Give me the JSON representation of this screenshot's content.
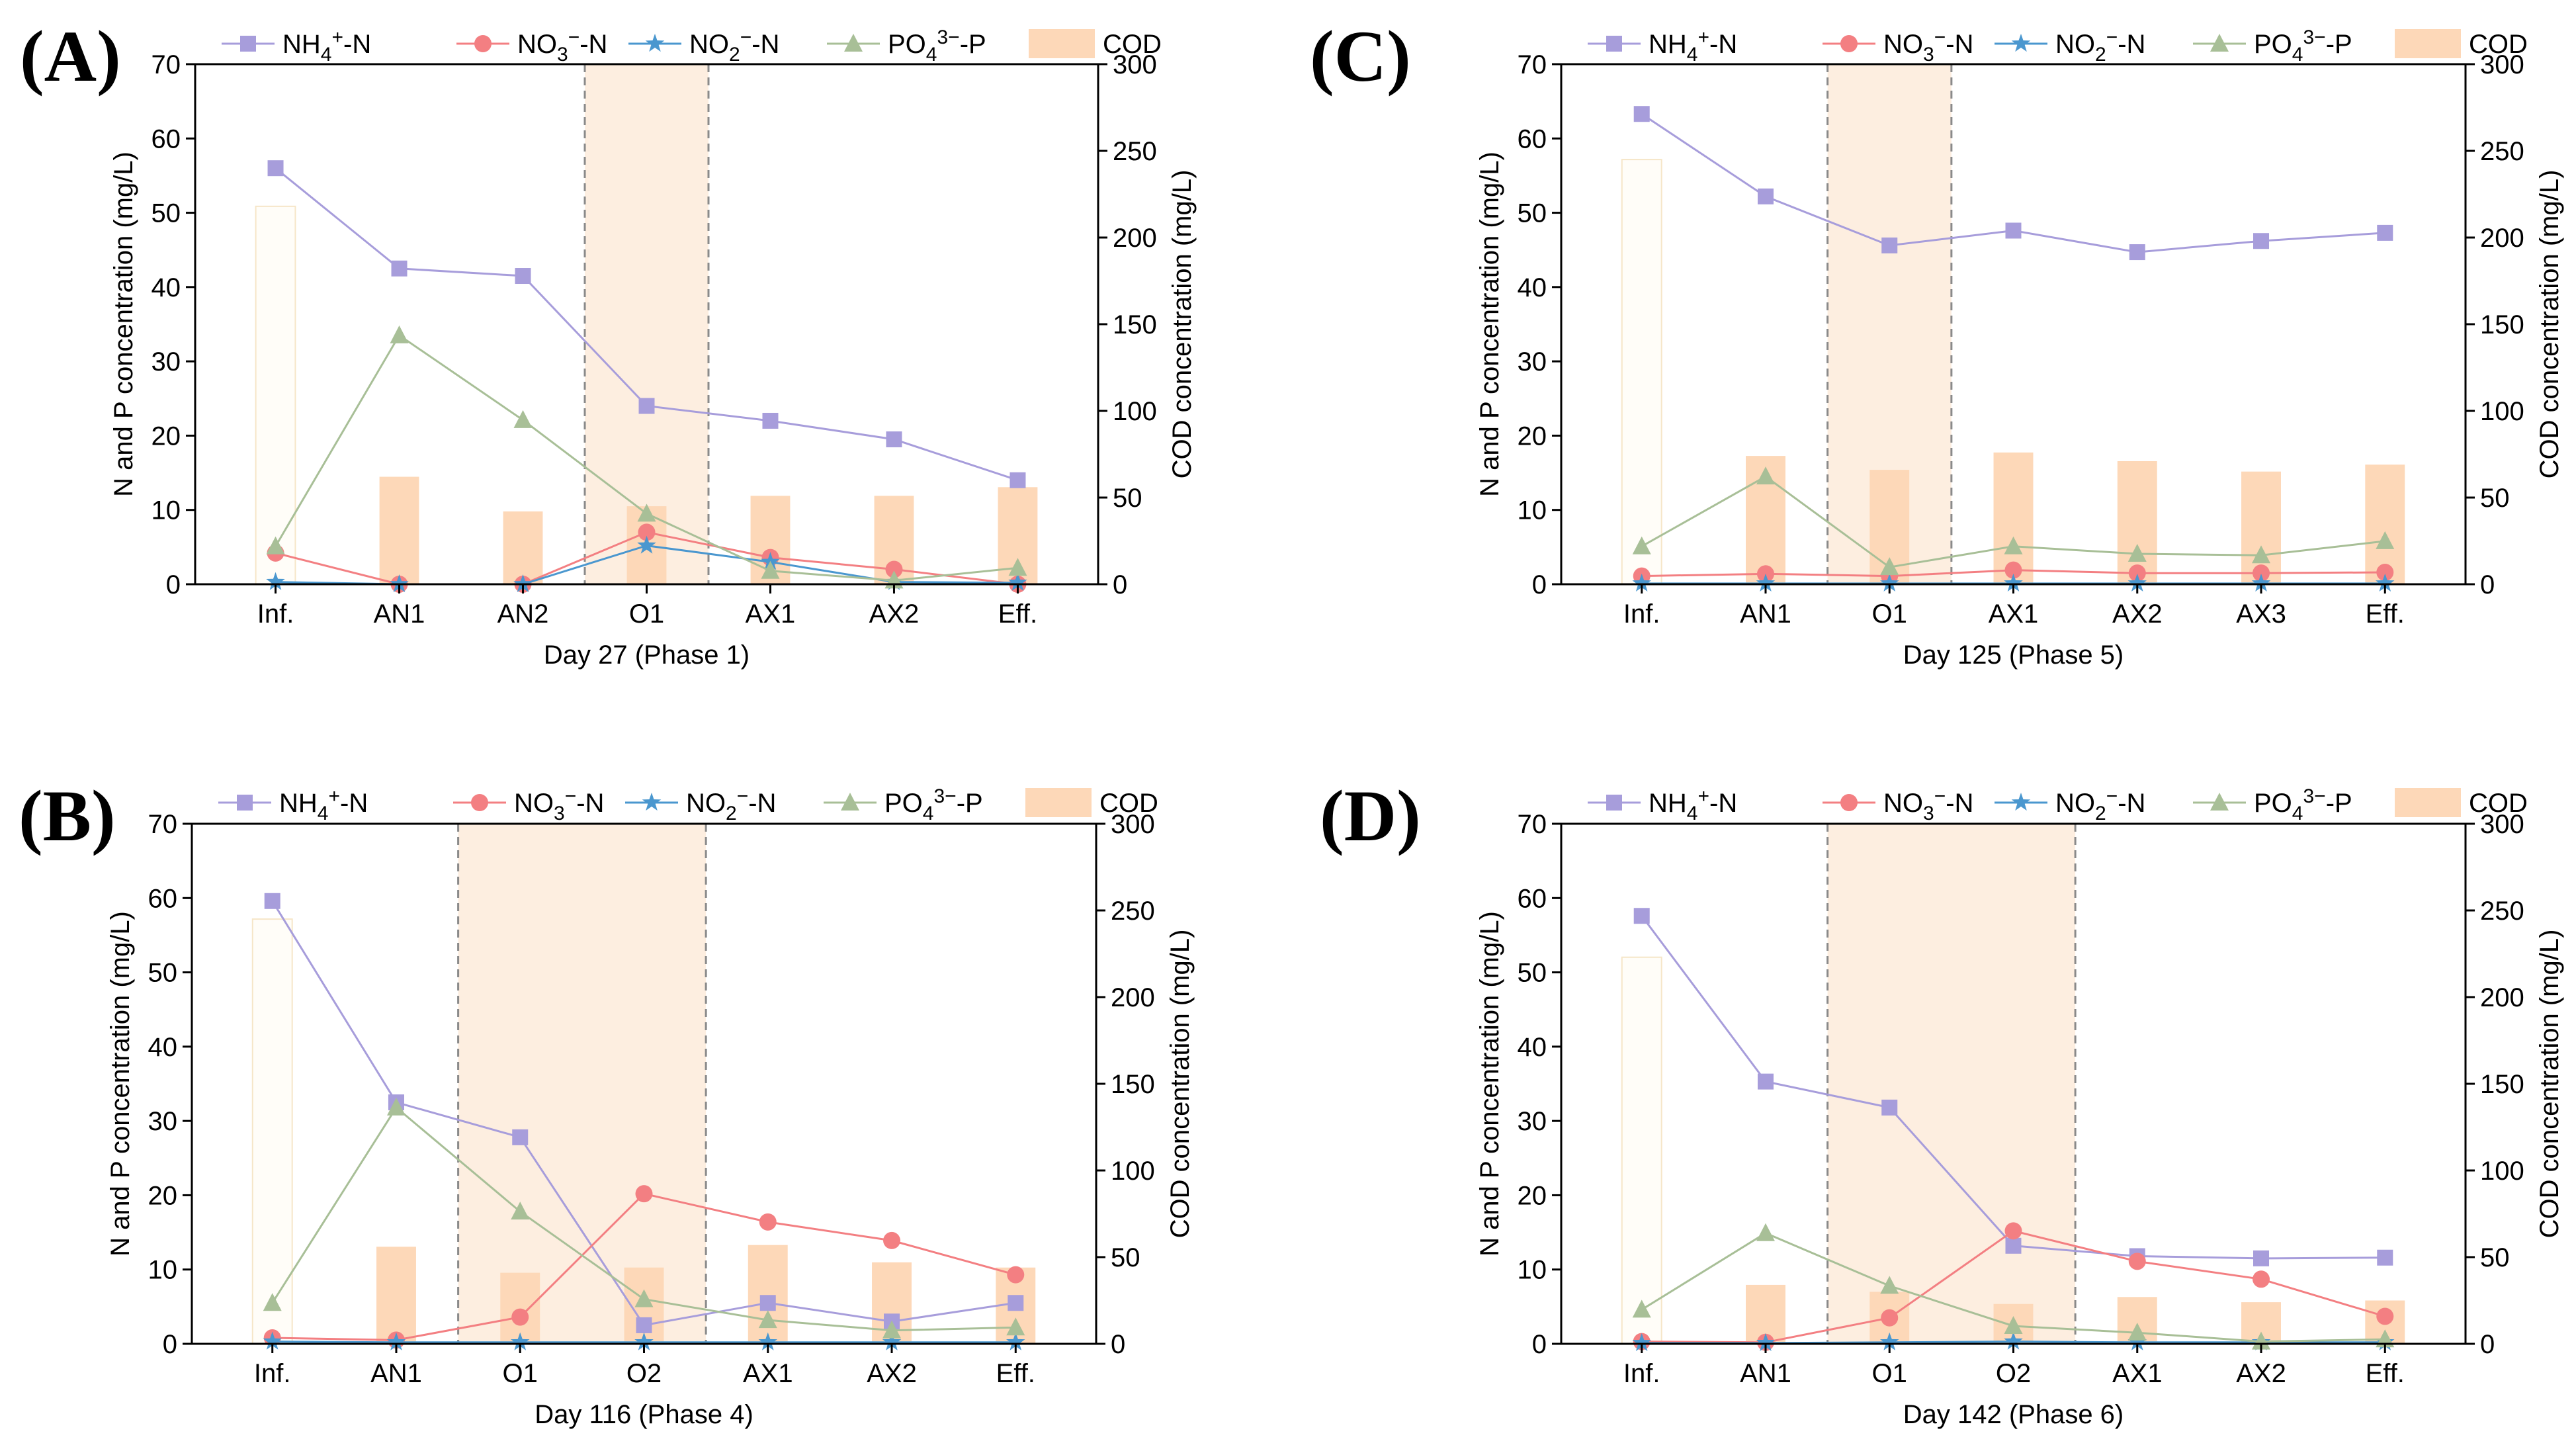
{
  "chart_data": [
    {
      "panel": "(A)",
      "type": "bar+line",
      "xlabel": "Day 27 (Phase 1)",
      "ylabel": "N and P concentration (mg/L)",
      "y2label": "COD concentration (mg/L)",
      "ylim": [
        0,
        70
      ],
      "y2lim": [
        0,
        300
      ],
      "yticks": [
        0,
        10,
        20,
        30,
        40,
        50,
        60,
        70
      ],
      "y2ticks": [
        0,
        50,
        100,
        150,
        200,
        250,
        300
      ],
      "categories": [
        "Inf.",
        "AN1",
        "AN2",
        "O1",
        "AX1",
        "AX2",
        "Eff."
      ],
      "shaded_region": [
        "O1",
        "O1"
      ],
      "cod_values": [
        218,
        62,
        42,
        45,
        51,
        51,
        56
      ],
      "series": [
        {
          "name": "NH4+-N",
          "values": [
            56,
            42.5,
            41.5,
            24,
            22,
            19.5,
            14
          ]
        },
        {
          "name": "NO3−-N",
          "values": [
            4.2,
            0,
            0,
            7,
            3.6,
            2,
            0
          ]
        },
        {
          "name": "NO2−-N",
          "values": [
            0.3,
            0,
            0,
            5.2,
            3,
            0.3,
            0.2
          ]
        },
        {
          "name": "PO43−-P",
          "values": [
            5.1,
            33.5,
            22.1,
            9.5,
            1.8,
            0.5,
            2.2
          ]
        }
      ]
    },
    {
      "panel": "(B)",
      "type": "bar+line",
      "xlabel": "Day 116 (Phase 4)",
      "ylabel": "N and P concentration (mg/L)",
      "y2label": "COD concentration (mg/L)",
      "ylim": [
        0,
        70
      ],
      "y2lim": [
        0,
        300
      ],
      "yticks": [
        0,
        10,
        20,
        30,
        40,
        50,
        60,
        70
      ],
      "y2ticks": [
        0,
        50,
        100,
        150,
        200,
        250,
        300
      ],
      "categories": [
        "Inf.",
        "AN1",
        "O1",
        "O2",
        "AX1",
        "AX2",
        "Eff."
      ],
      "shaded_region": [
        "O1",
        "O2"
      ],
      "cod_values": [
        245,
        56,
        41,
        44,
        57,
        47,
        44
      ],
      "series": [
        {
          "name": "NH4+-N",
          "values": [
            59.6,
            32.5,
            27.8,
            2.5,
            5.5,
            3,
            5.5
          ]
        },
        {
          "name": "NO3−-N",
          "values": [
            0.8,
            0.5,
            3.6,
            20.2,
            16.4,
            13.9,
            9.3
          ]
        },
        {
          "name": "NO2−-N",
          "values": [
            0.3,
            0.2,
            0.2,
            0.2,
            0.2,
            0.2,
            0.2
          ]
        },
        {
          "name": "PO43−-P",
          "values": [
            5.5,
            31.8,
            17.8,
            6,
            3.2,
            1.8,
            2.2
          ]
        }
      ]
    },
    {
      "panel": "(C)",
      "type": "bar+line",
      "xlabel": "Day 125 (Phase 5)",
      "ylabel": "N and P concentration (mg/L)",
      "y2label": "COD concentration (mg/L)",
      "ylim": [
        0,
        70
      ],
      "y2lim": [
        0,
        300
      ],
      "yticks": [
        0,
        10,
        20,
        30,
        40,
        50,
        60,
        70
      ],
      "y2ticks": [
        0,
        50,
        100,
        150,
        200,
        250,
        300
      ],
      "categories": [
        "Inf.",
        "AN1",
        "O1",
        "AX1",
        "AX2",
        "AX3",
        "Eff."
      ],
      "shaded_region": [
        "O1",
        "O1"
      ],
      "cod_values": [
        245,
        74,
        66,
        76,
        71,
        65,
        69
      ],
      "series": [
        {
          "name": "NH4+-N",
          "values": [
            63.3,
            52.2,
            45.6,
            47.6,
            44.7,
            46.2,
            47.3
          ]
        },
        {
          "name": "NO3−-N",
          "values": [
            1.1,
            1.4,
            1.1,
            1.9,
            1.5,
            1.5,
            1.6
          ]
        },
        {
          "name": "NO2−-N",
          "values": [
            0.1,
            0.1,
            0.1,
            0.1,
            0.1,
            0.1,
            0.1
          ]
        },
        {
          "name": "PO43−-P",
          "values": [
            5.1,
            14.5,
            2.3,
            5.1,
            4.1,
            3.9,
            5.8
          ]
        }
      ]
    },
    {
      "panel": "(D)",
      "type": "bar+line",
      "xlabel": "Day 142 (Phase 6)",
      "ylabel": "N and P concentration (mg/L)",
      "y2label": "COD concentration (mg/L)",
      "ylim": [
        0,
        70
      ],
      "y2lim": [
        0,
        300
      ],
      "yticks": [
        0,
        10,
        20,
        30,
        40,
        50,
        60,
        70
      ],
      "y2ticks": [
        0,
        50,
        100,
        150,
        200,
        250,
        300
      ],
      "categories": [
        "Inf.",
        "AN1",
        "O1",
        "O2",
        "AX1",
        "AX2",
        "Eff."
      ],
      "shaded_region": [
        "O1",
        "O2"
      ],
      "cod_values": [
        223,
        34,
        30,
        23,
        27,
        24,
        25
      ],
      "series": [
        {
          "name": "NH4+-N",
          "values": [
            57.6,
            35.3,
            31.8,
            13.2,
            11.8,
            11.5,
            11.6
          ]
        },
        {
          "name": "NO3−-N",
          "values": [
            0.3,
            0.2,
            3.5,
            15.2,
            11.1,
            8.7,
            3.7
          ]
        },
        {
          "name": "NO2−-N",
          "values": [
            0.1,
            0.1,
            0.2,
            0.3,
            0.2,
            0.2,
            0.2
          ]
        },
        {
          "name": "PO43−-P",
          "values": [
            4.6,
            14.9,
            7.8,
            2.4,
            1.5,
            0.3,
            0.6
          ]
        }
      ]
    }
  ],
  "legend": {
    "colors": {
      "NH4+-N": "#a79ddb",
      "NO3−-N": "#f37f82",
      "NO2−-N": "#4a97cf",
      "PO43−-P": "#a8bf97",
      "COD": "#fdd8b8",
      "shade": "#fdeee0"
    },
    "markers": {
      "NH4+-N": "square",
      "NO3−-N": "circle",
      "NO2−-N": "star",
      "PO43−-P": "triangle"
    },
    "placement": "top, horizontal"
  }
}
